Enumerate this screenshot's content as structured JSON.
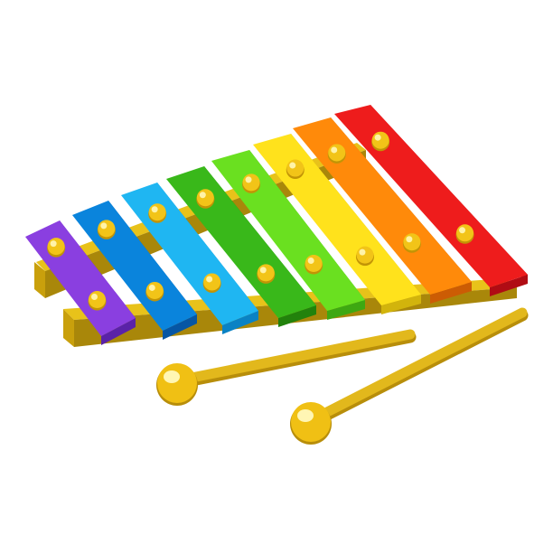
{
  "illustration": {
    "subject": "xylophone",
    "background_color": "#ffffff",
    "frame": {
      "top_color": "#e8c21a",
      "side_color": "#c9a00c",
      "shade_color": "#a9870a"
    },
    "bars": [
      {
        "name": "purple",
        "top": "#8a3fe0",
        "side": "#5a22a8"
      },
      {
        "name": "blue",
        "top": "#0a84dc",
        "side": "#0656a4"
      },
      {
        "name": "light-blue",
        "top": "#1fb6f2",
        "side": "#0a82c4"
      },
      {
        "name": "green",
        "top": "#39b81a",
        "side": "#22820c"
      },
      {
        "name": "light-green",
        "top": "#6ae020",
        "side": "#3ea812"
      },
      {
        "name": "yellow",
        "top": "#ffe21c",
        "side": "#d2b40c"
      },
      {
        "name": "orange",
        "top": "#ff8a0a",
        "side": "#cc5c04"
      },
      {
        "name": "red",
        "top": "#ee1c1c",
        "side": "#b00c14"
      }
    ],
    "nail": {
      "fill": "#f2c418",
      "highlight": "#fff3a8",
      "shade": "#c29406"
    },
    "mallets": {
      "count": 2,
      "stick_color": "#e2b81c",
      "stick_shade": "#b88e0a",
      "head_color": "#f0c014",
      "head_highlight": "#fff6b4"
    }
  }
}
